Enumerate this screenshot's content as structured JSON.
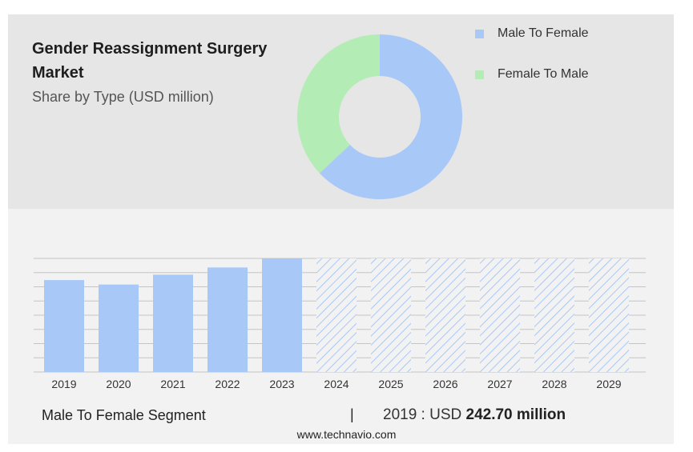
{
  "header": {
    "title": "Gender Reassignment Surgery Market",
    "subtitle": "Share by Type (USD million)"
  },
  "legend": {
    "items": [
      {
        "label": "Male To Female",
        "color": "#a8c8f8"
      },
      {
        "label": "Female To Male",
        "color": "#b3ecb5"
      }
    ]
  },
  "chart_data": [
    {
      "type": "pie",
      "variant": "donut",
      "categories": [
        "Male To Female",
        "Female To Male"
      ],
      "values": [
        63,
        37
      ],
      "colors": [
        "#a8c8f8",
        "#b3ecb5"
      ]
    },
    {
      "type": "bar",
      "categories": [
        "2019",
        "2020",
        "2021",
        "2022",
        "2023",
        "2024",
        "2025",
        "2026",
        "2027",
        "2028",
        "2029"
      ],
      "values": [
        242.7,
        231,
        257,
        276,
        300,
        null,
        null,
        null,
        null,
        null,
        null
      ],
      "forecast": [
        false,
        false,
        false,
        false,
        false,
        true,
        true,
        true,
        true,
        true,
        true
      ],
      "ylim": [
        0,
        300
      ],
      "grid": true,
      "bar_color": "#a8c8f8",
      "forecast_style": "hatched"
    }
  ],
  "footer": {
    "segment_label": "Male To Female Segment",
    "separator": "|",
    "year_prefix": "2019 : USD",
    "value": "242.70 million"
  },
  "source": "www.technavio.com"
}
